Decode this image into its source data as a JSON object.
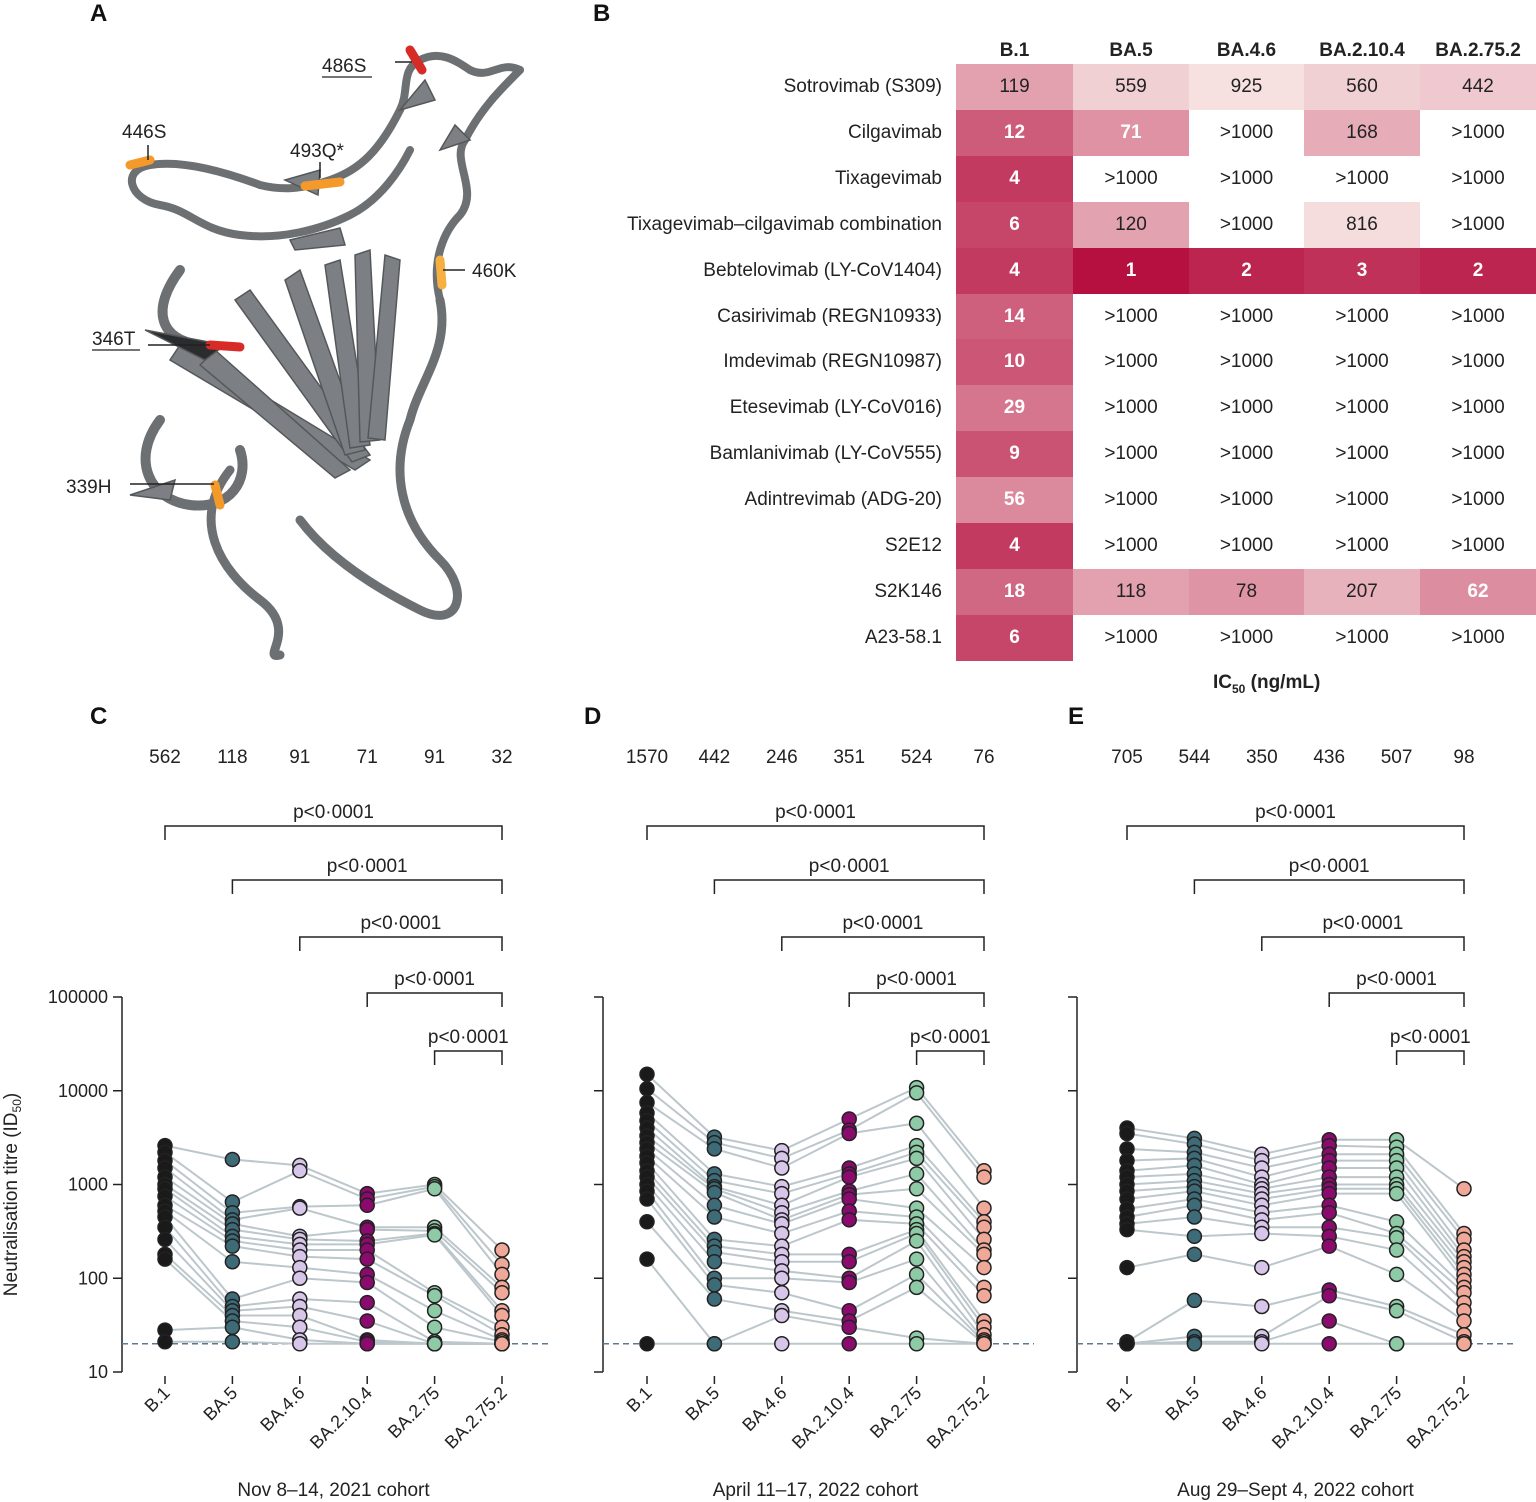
{
  "panels": {
    "a": "A",
    "b": "B",
    "c": "C",
    "d": "D",
    "e": "E"
  },
  "structure_labels": [
    {
      "name": "486s",
      "text": "486S",
      "underline": true
    },
    {
      "name": "446s",
      "text": "446S",
      "underline": false
    },
    {
      "name": "493q",
      "text": "493Q*",
      "underline": false
    },
    {
      "name": "460k",
      "text": "460K",
      "underline": false
    },
    {
      "name": "346t",
      "text": "346T",
      "underline": true
    },
    {
      "name": "339h",
      "text": "339H",
      "underline": false
    }
  ],
  "heatmap": {
    "columns": [
      "B.1",
      "BA.5",
      "BA.4.6",
      "BA.2.10.4",
      "BA.2.75.2"
    ],
    "rows": [
      {
        "label": "Sotrovimab (S309)",
        "values": [
          "119",
          "559",
          "925",
          "560",
          "442"
        ]
      },
      {
        "label": "Cilgavimab",
        "values": [
          "12",
          "71",
          ">1000",
          "168",
          ">1000"
        ]
      },
      {
        "label": "Tixagevimab",
        "values": [
          "4",
          ">1000",
          ">1000",
          ">1000",
          ">1000"
        ]
      },
      {
        "label": "Tixagevimab–cilgavimab combination",
        "values": [
          "6",
          "120",
          ">1000",
          "816",
          ">1000"
        ]
      },
      {
        "label": "Bebtelovimab (LY-CoV1404)",
        "values": [
          "4",
          "1",
          "2",
          "3",
          "2"
        ]
      },
      {
        "label": "Casirivimab (REGN10933)",
        "values": [
          "14",
          ">1000",
          ">1000",
          ">1000",
          ">1000"
        ]
      },
      {
        "label": "Imdevimab (REGN10987)",
        "values": [
          "10",
          ">1000",
          ">1000",
          ">1000",
          ">1000"
        ]
      },
      {
        "label": "Etesevimab (LY-CoV016)",
        "values": [
          "29",
          ">1000",
          ">1000",
          ">1000",
          ">1000"
        ]
      },
      {
        "label": "Bamlanivimab (LY-CoV555)",
        "values": [
          "9",
          ">1000",
          ">1000",
          ">1000",
          ">1000"
        ]
      },
      {
        "label": "Adintrevimab (ADG-20)",
        "values": [
          "56",
          ">1000",
          ">1000",
          ">1000",
          ">1000"
        ]
      },
      {
        "label": "S2E12",
        "values": [
          "4",
          ">1000",
          ">1000",
          ">1000",
          ">1000"
        ]
      },
      {
        "label": "S2K146",
        "values": [
          "18",
          "118",
          "78",
          "207",
          "62"
        ]
      },
      {
        "label": "A23-58.1",
        "values": [
          "6",
          ">1000",
          ">1000",
          ">1000",
          ">1000"
        ]
      }
    ],
    "xlabel_main": "IC",
    "xlabel_sub": "50",
    "xlabel_unit": " (ng/mL)",
    "scale": {
      "dark": "#b5103f",
      "light": "#f7e2e2",
      "blank": "#ffffff"
    }
  },
  "chart_data": [
    {
      "panel": "C",
      "type": "scatter",
      "xlabel": "Nov 8–14, 2021 cohort",
      "ylabel": "Neutralisation titre (ID",
      "ylabel_sub": "50",
      "ylabel_end": ")",
      "yscale": "log",
      "ylim": [
        10,
        100000
      ],
      "yticks": [
        "10",
        "100",
        "1000",
        "10000",
        "100000"
      ],
      "categories": [
        "B.1",
        "BA.5",
        "BA.4.6",
        "BA.2.10.4",
        "BA.2.75",
        "BA.2.75.2"
      ],
      "gmt": [
        "562",
        "118",
        "91",
        "71",
        "91",
        "32"
      ],
      "comparisons": [
        {
          "from": 0,
          "to": 5,
          "label": "p<0·0001"
        },
        {
          "from": 1,
          "to": 5,
          "label": "p<0·0001"
        },
        {
          "from": 2,
          "to": 5,
          "label": "p<0·0001"
        },
        {
          "from": 3,
          "to": 5,
          "label": "p<0·0001"
        },
        {
          "from": 4,
          "to": 5,
          "label": "p<0·0001"
        }
      ],
      "detection_limit": 20,
      "series": [
        {
          "values": [
            2600,
            1850,
            1600,
            800,
            1000,
            200
          ]
        },
        {
          "values": [
            2200,
            650,
            1400,
            700,
            950,
            140
          ]
        },
        {
          "values": [
            1800,
            500,
            580,
            600,
            900,
            110
          ]
        },
        {
          "values": [
            1500,
            420,
            560,
            350,
            350,
            80
          ]
        },
        {
          "values": [
            1200,
            380,
            280,
            330,
            320,
            70
          ]
        },
        {
          "values": [
            1000,
            330,
            260,
            250,
            300,
            45
          ]
        },
        {
          "values": [
            900,
            280,
            230,
            230,
            290,
            40
          ]
        },
        {
          "values": [
            750,
            250,
            200,
            200,
            70,
            30
          ]
        },
        {
          "values": [
            600,
            220,
            170,
            160,
            65,
            25
          ]
        },
        {
          "values": [
            520,
            150,
            130,
            110,
            45,
            22
          ]
        },
        {
          "values": [
            450,
            60,
            100,
            90,
            30,
            21
          ]
        },
        {
          "values": [
            350,
            50,
            60,
            55,
            21,
            20
          ]
        },
        {
          "values": [
            260,
            45,
            50,
            35,
            20,
            20
          ]
        },
        {
          "values": [
            180,
            40,
            40,
            22,
            20,
            20
          ]
        },
        {
          "values": [
            160,
            35,
            30,
            21,
            20,
            20
          ]
        },
        {
          "values": [
            28,
            30,
            22,
            20,
            20,
            20
          ]
        },
        {
          "values": [
            21,
            21,
            20,
            20,
            20,
            20
          ]
        }
      ]
    },
    {
      "panel": "D",
      "type": "scatter",
      "xlabel": "April 11–17, 2022 cohort",
      "yscale": "log",
      "ylim": [
        10,
        100000
      ],
      "categories": [
        "B.1",
        "BA.5",
        "BA.4.6",
        "BA.2.10.4",
        "BA.2.75",
        "BA.2.75.2"
      ],
      "gmt": [
        "1570",
        "442",
        "246",
        "351",
        "524",
        "76"
      ],
      "comparisons": [
        {
          "from": 0,
          "to": 5,
          "label": "p<0·0001"
        },
        {
          "from": 1,
          "to": 5,
          "label": "p<0·0001"
        },
        {
          "from": 2,
          "to": 5,
          "label": "p<0·0001"
        },
        {
          "from": 3,
          "to": 5,
          "label": "p<0·0001"
        },
        {
          "from": 4,
          "to": 5,
          "label": "p<0·0001"
        }
      ],
      "detection_limit": 20,
      "series": [
        {
          "values": [
            15000,
            3200,
            2300,
            5000,
            10800,
            1400
          ]
        },
        {
          "values": [
            10500,
            2800,
            1900,
            3800,
            9500,
            1200
          ]
        },
        {
          "values": [
            7500,
            2400,
            1500,
            3500,
            4500,
            560
          ]
        },
        {
          "values": [
            5800,
            1300,
            950,
            1500,
            2600,
            400
          ]
        },
        {
          "values": [
            4800,
            1100,
            800,
            1300,
            2200,
            350
          ]
        },
        {
          "values": [
            4000,
            950,
            600,
            1200,
            1900,
            260
          ]
        },
        {
          "values": [
            3300,
            900,
            500,
            850,
            1300,
            200
          ]
        },
        {
          "values": [
            2800,
            820,
            420,
            780,
            900,
            180
          ]
        },
        {
          "values": [
            2400,
            600,
            380,
            700,
            560,
            130
          ]
        },
        {
          "values": [
            2000,
            450,
            300,
            520,
            450,
            80
          ]
        },
        {
          "values": [
            1700,
            260,
            220,
            420,
            380,
            65
          ]
        },
        {
          "values": [
            1400,
            220,
            180,
            180,
            330,
            35
          ]
        },
        {
          "values": [
            1200,
            190,
            150,
            150,
            300,
            30
          ]
        },
        {
          "values": [
            1000,
            150,
            120,
            100,
            250,
            25
          ]
        },
        {
          "values": [
            850,
            100,
            100,
            90,
            160,
            22
          ]
        },
        {
          "values": [
            700,
            85,
            70,
            45,
            110,
            21
          ]
        },
        {
          "values": [
            400,
            60,
            45,
            35,
            80,
            20
          ]
        },
        {
          "values": [
            160,
            20,
            40,
            30,
            23,
            20
          ]
        },
        {
          "values": [
            20,
            20,
            20,
            20,
            20,
            20
          ]
        }
      ]
    },
    {
      "panel": "E",
      "type": "scatter",
      "xlabel": "Aug 29–Sept 4, 2022 cohort",
      "yscale": "log",
      "ylim": [
        10,
        100000
      ],
      "categories": [
        "B.1",
        "BA.5",
        "BA.4.6",
        "BA.2.10.4",
        "BA.2.75",
        "BA.2.75.2"
      ],
      "gmt": [
        "705",
        "544",
        "350",
        "436",
        "507",
        "98"
      ],
      "comparisons": [
        {
          "from": 0,
          "to": 5,
          "label": "p<0·0001"
        },
        {
          "from": 1,
          "to": 5,
          "label": "p<0·0001"
        },
        {
          "from": 2,
          "to": 5,
          "label": "p<0·0001"
        },
        {
          "from": 3,
          "to": 5,
          "label": "p<0·0001"
        },
        {
          "from": 4,
          "to": 5,
          "label": "p<0·0001"
        }
      ],
      "detection_limit": 20,
      "series": [
        {
          "values": [
            4000,
            3100,
            2100,
            3000,
            3000,
            900
          ]
        },
        {
          "values": [
            3500,
            2700,
            1800,
            2600,
            2500,
            300
          ]
        },
        {
          "values": [
            2400,
            2200,
            1500,
            2100,
            2100,
            260
          ]
        },
        {
          "values": [
            1800,
            1900,
            1200,
            1800,
            1800,
            200
          ]
        },
        {
          "values": [
            1400,
            1600,
            1000,
            1500,
            1500,
            170
          ]
        },
        {
          "values": [
            1200,
            1300,
            900,
            1200,
            1200,
            150
          ]
        },
        {
          "values": [
            1000,
            1100,
            800,
            1000,
            1000,
            130
          ]
        },
        {
          "values": [
            850,
            950,
            700,
            900,
            900,
            110
          ]
        },
        {
          "values": [
            700,
            850,
            600,
            800,
            800,
            95
          ]
        },
        {
          "values": [
            550,
            700,
            500,
            600,
            400,
            80
          ]
        },
        {
          "values": [
            450,
            600,
            420,
            500,
            300,
            70
          ]
        },
        {
          "values": [
            380,
            450,
            350,
            350,
            270,
            55
          ]
        },
        {
          "values": [
            330,
            280,
            300,
            280,
            200,
            45
          ]
        },
        {
          "values": [
            130,
            180,
            130,
            220,
            110,
            35
          ]
        },
        {
          "values": [
            21,
            58,
            50,
            75,
            50,
            25
          ]
        },
        {
          "values": [
            20,
            24,
            24,
            65,
            45,
            21
          ]
        },
        {
          "values": [
            20,
            21,
            21,
            35,
            20,
            20
          ]
        },
        {
          "values": [
            20,
            20,
            20,
            20,
            20,
            20
          ]
        }
      ]
    }
  ],
  "colors": {
    "b1": "#1a1a1a",
    "ba5": "#3e6b78",
    "ba46": "#d8c6ea",
    "ba2104": "#8b0a6e",
    "ba275": "#8fcaa6",
    "ba2752": "#f0a898",
    "line": "#bcc7cc",
    "dash": "#5b7a92"
  }
}
